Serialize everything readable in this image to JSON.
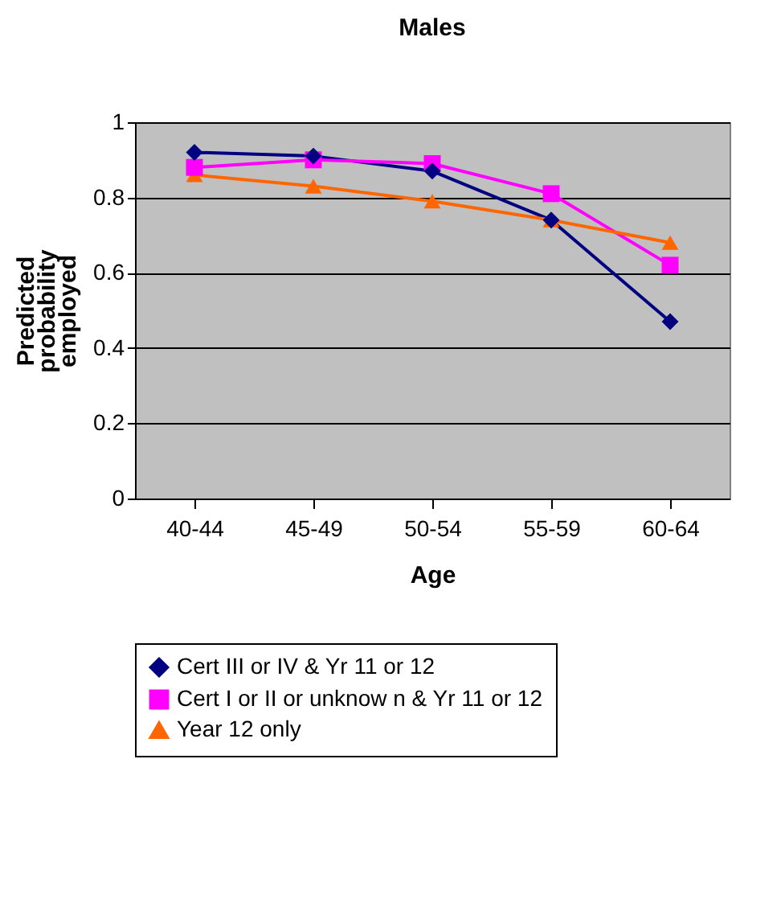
{
  "chart_data": {
    "type": "line",
    "title": "Males",
    "xlabel": "Age",
    "ylabel": "Predicted probability employed",
    "categories": [
      "40-44",
      "45-49",
      "50-54",
      "55-59",
      "60-64"
    ],
    "series": [
      {
        "name": "Cert III or IV & Yr 11 or 12",
        "color": "#000080",
        "marker": "diamond",
        "values": [
          0.92,
          0.91,
          0.87,
          0.74,
          0.47
        ]
      },
      {
        "name": "Cert I or II or unknow n & Yr 11 or 12",
        "color": "#ff00ff",
        "marker": "square",
        "values": [
          0.88,
          0.9,
          0.89,
          0.81,
          0.62
        ]
      },
      {
        "name": "Year 12 only",
        "color": "#ff6600",
        "marker": "triangle",
        "values": [
          0.86,
          0.83,
          0.79,
          0.74,
          0.68
        ]
      }
    ],
    "ylim": [
      0,
      1
    ],
    "yticks": [
      0,
      0.2,
      0.4,
      0.6,
      0.8,
      1
    ],
    "grid": "y",
    "legend": "bottom",
    "line_style": "solid"
  }
}
